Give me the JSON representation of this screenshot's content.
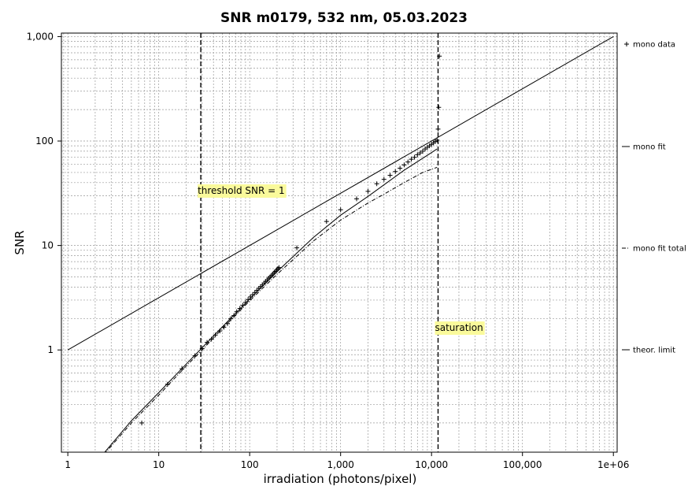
{
  "chart_data": {
    "type": "scatter",
    "title": "SNR m0179,  532 nm, 05.03.2023",
    "xlabel": "irradiation (photons/pixel)",
    "ylabel": "SNR",
    "x_scale": "log",
    "y_scale": "log",
    "xlim": [
      0.85,
      1100000
    ],
    "ylim": [
      0.105,
      1080
    ],
    "x_ticks": [
      1,
      10,
      100,
      1000,
      10000,
      100000,
      1000000
    ],
    "x_tick_labels": [
      "1",
      "10",
      "100",
      "1,000",
      "10,000",
      "100,000",
      "1e+06"
    ],
    "y_ticks": [
      1,
      10,
      100,
      1000
    ],
    "y_tick_labels": [
      "1",
      "10",
      "100",
      "1,000"
    ],
    "grid": true,
    "legend_position": "right",
    "series": [
      {
        "name": "mono data",
        "style": "plus-markers",
        "color": "#000000",
        "x": [
          6.5,
          12.5,
          18,
          25,
          30,
          34,
          38,
          42,
          47,
          52,
          57,
          62,
          67,
          72,
          78,
          84,
          90,
          96,
          102,
          108,
          114,
          120,
          126,
          132,
          138,
          144,
          150,
          156,
          162,
          168,
          174,
          180,
          186,
          192,
          198,
          204,
          210,
          330,
          700,
          1000,
          1500,
          2000,
          2500,
          3000,
          3500,
          4000,
          4500,
          5000,
          5500,
          6000,
          6500,
          7000,
          7500,
          8000,
          8500,
          9000,
          9500,
          10000,
          10500,
          11000,
          11500,
          11800,
          12000,
          12200
        ],
        "y": [
          0.2,
          0.47,
          0.66,
          0.88,
          1.03,
          1.18,
          1.27,
          1.39,
          1.52,
          1.65,
          1.79,
          1.99,
          2.13,
          2.32,
          2.5,
          2.67,
          2.85,
          3.04,
          3.22,
          3.38,
          3.55,
          3.72,
          3.88,
          4.04,
          4.2,
          4.37,
          4.53,
          4.69,
          4.86,
          5.0,
          5.17,
          5.33,
          5.5,
          5.65,
          5.82,
          6.0,
          6.15,
          9.5,
          17.0,
          22.0,
          28.0,
          33.0,
          39.0,
          43.0,
          47.0,
          51.0,
          55.0,
          59.0,
          63.0,
          67.0,
          70.0,
          74.0,
          77.0,
          80.0,
          84.0,
          87.0,
          90.0,
          93.0,
          96.0,
          99.0,
          102.0,
          130.0,
          210.0,
          650.0
        ]
      },
      {
        "name": "mono fit",
        "style": "solid",
        "color": "#000000",
        "x": [
          1,
          2.5,
          5,
          10,
          20,
          30,
          50,
          100,
          200,
          500,
          1000,
          2000,
          5000,
          10000,
          11500
        ],
        "y": [
          0.068,
          0.103,
          0.21,
          0.39,
          0.73,
          1.05,
          1.66,
          3.08,
          5.6,
          11.9,
          19.5,
          29.5,
          52.5,
          77.5,
          84.0
        ]
      },
      {
        "name": "mono fit total",
        "style": "dash-dot",
        "color": "#000000",
        "x": [
          2.5,
          5,
          10,
          20,
          30,
          50,
          100,
          200,
          500,
          1000,
          2000,
          3000,
          5000,
          8000,
          11500
        ],
        "y": [
          0.1,
          0.2,
          0.37,
          0.7,
          1.0,
          1.6,
          2.95,
          5.3,
          11.0,
          17.5,
          25.5,
          31.0,
          40.0,
          50.0,
          56.0
        ]
      },
      {
        "name": "theor. limit",
        "style": "solid",
        "color": "#000000",
        "x": [
          1,
          1000000
        ],
        "y": [
          1,
          1000
        ]
      }
    ],
    "annotations": [
      {
        "text": "threshold SNR = 1",
        "x": 29,
        "highlight": "#fafa9b"
      },
      {
        "text": "saturation",
        "x": 11800,
        "highlight": "#fafa9b"
      }
    ]
  }
}
